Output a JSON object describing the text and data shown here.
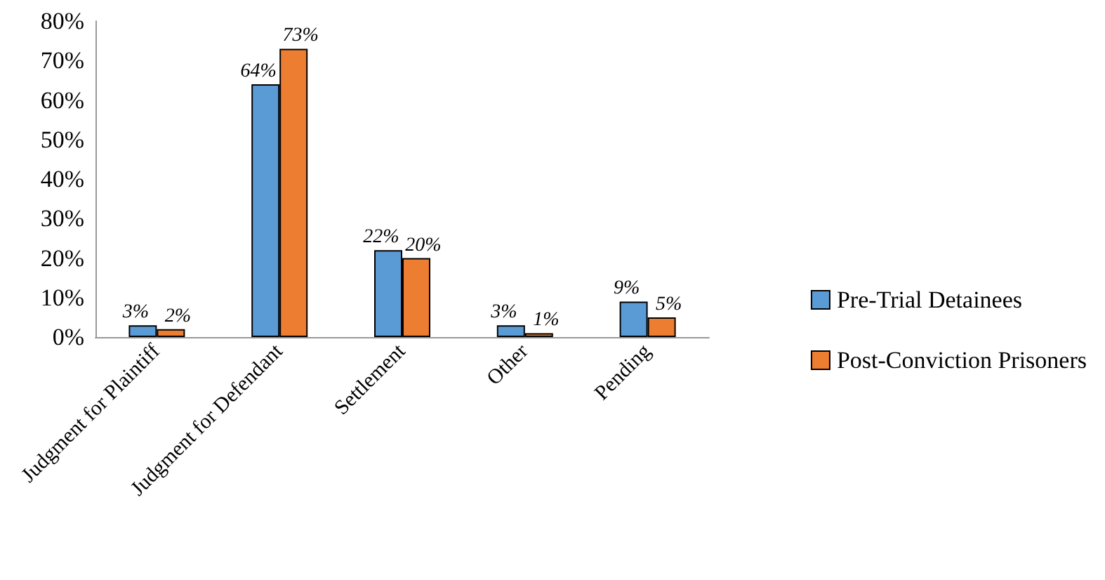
{
  "chart_data": {
    "type": "bar",
    "categories": [
      "Judgment for Plaintiff",
      "Judgment for Defendant",
      "Settlement",
      "Other",
      "Pending"
    ],
    "series": [
      {
        "name": "Pre-Trial Detainees",
        "color": "#5b9bd5",
        "values": [
          3,
          64,
          22,
          3,
          9
        ],
        "value_labels": [
          "3%",
          "64%",
          "22%",
          "3%",
          "9%"
        ]
      },
      {
        "name": "Post-Conviction Prisoners",
        "color": "#ed7d31",
        "values": [
          2,
          73,
          20,
          1,
          5
        ],
        "value_labels": [
          "2%",
          "73%",
          "20%",
          "1%",
          "5%"
        ]
      }
    ],
    "ylim": [
      0,
      80
    ],
    "yticks": [
      {
        "value": 0,
        "label": "0%"
      },
      {
        "value": 10,
        "label": "10%"
      },
      {
        "value": 20,
        "label": "20%"
      },
      {
        "value": 30,
        "label": "30%"
      },
      {
        "value": 40,
        "label": "40%"
      },
      {
        "value": 50,
        "label": "50%"
      },
      {
        "value": 60,
        "label": "60%"
      },
      {
        "value": 70,
        "label": "70%"
      },
      {
        "value": 80,
        "label": "80%"
      }
    ],
    "grid": false,
    "legend": "right"
  }
}
